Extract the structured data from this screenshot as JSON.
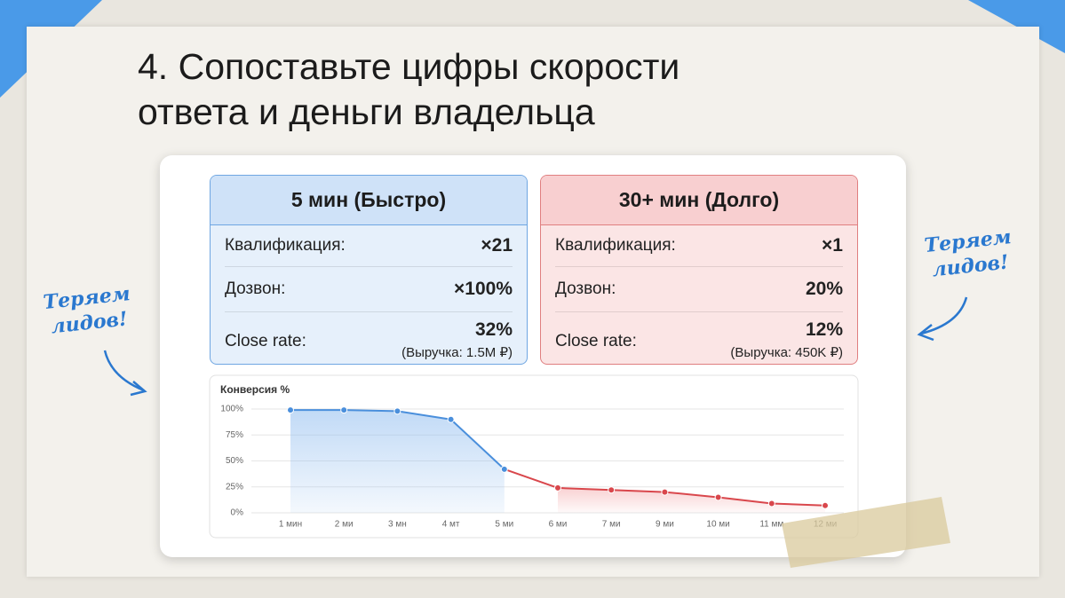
{
  "header": {
    "title_lines": [
      "4. Сопоставьте цифры скорости",
      "ответа и деньги владельца"
    ]
  },
  "cards": [
    {
      "title": "5 мин (Быстро)",
      "rows": [
        [
          "Квалификация:",
          "×21"
        ],
        [
          "Дозвон:",
          "×100%"
        ],
        [
          "Close rate:",
          "32%",
          "(Выручка: 1.5M ₽)"
        ]
      ]
    },
    {
      "title": "30+ мин (Долго)",
      "rows": [
        [
          "Квалификация:",
          "×1"
        ],
        [
          "Дозвон:",
          "20%"
        ],
        [
          "Close rate:",
          "12%",
          "(Выручка: 450K ₽)"
        ]
      ]
    }
  ],
  "annotations": [
    [
      "Теряем",
      "лидов!"
    ],
    [
      "Теряем",
      "лидов!"
    ]
  ],
  "chart_data": {
    "type": "line",
    "title": "Конверсия %",
    "categories": [
      "1 мин",
      "2 ми",
      "3 мн",
      "4 мт",
      "5 ми",
      "6 ми",
      "7 ми",
      "9 ми",
      "10 ми",
      "11 мм",
      "12 ми"
    ],
    "values": [
      99,
      99,
      98,
      90,
      42,
      24,
      22,
      20,
      15,
      9,
      7
    ],
    "point_colors": [
      "#4a8fdc",
      "#4a8fdc",
      "#4a8fdc",
      "#4a8fdc",
      "#4a8fdc",
      "#d9474c",
      "#d9474c",
      "#d9474c",
      "#d9474c",
      "#d9474c",
      "#d9474c"
    ],
    "ylim": [
      0,
      100
    ],
    "yticks": [
      {
        "value": 0,
        "label": "0%"
      },
      {
        "value": 25,
        "label": "25%"
      },
      {
        "value": 50,
        "label": "50%"
      },
      {
        "value": 75,
        "label": "75%"
      },
      {
        "value": 100,
        "label": "100%"
      }
    ],
    "grid": true
  }
}
